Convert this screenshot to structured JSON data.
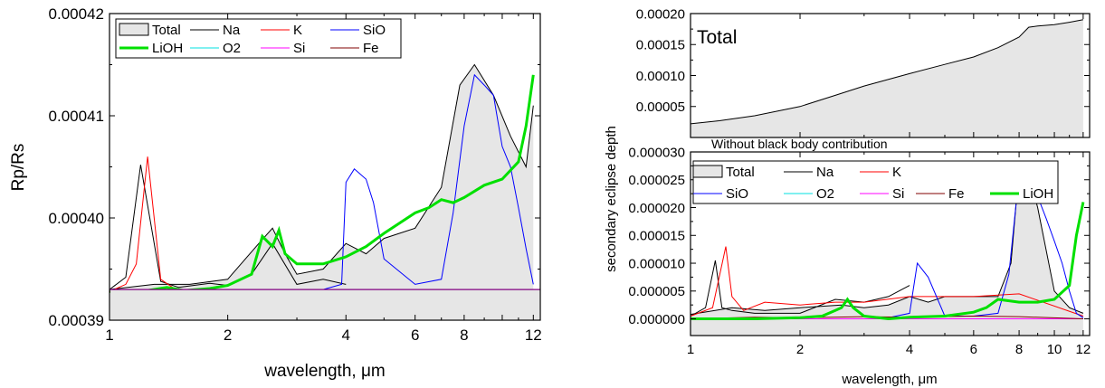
{
  "chart_data": [
    {
      "type": "line",
      "ylabel": "Rp/Rs",
      "xlabel": "wavelength, μm",
      "xscale": "log",
      "xlim": [
        1,
        12.5
      ],
      "ylim": [
        0.00039,
        0.00042
      ],
      "xticks": [
        1,
        2,
        4,
        6,
        8,
        12
      ],
      "xtick_labels": [
        "1",
        "2",
        "4",
        "6",
        "8",
        "12"
      ],
      "yticks": [
        0.00039,
        0.0004,
        0.00041,
        0.00042
      ],
      "ytick_labels": [
        "0.00039",
        "0.00040",
        "0.00041",
        "0.00042"
      ],
      "legend": {
        "position": "top-left",
        "entries": [
          "Total",
          "Na",
          "K",
          "SiO",
          "LiOH",
          "O2",
          "Si",
          "Fe"
        ]
      },
      "baseline": 0.000393,
      "series": [
        {
          "name": "Total",
          "style": "area",
          "color": "#000000",
          "x": [
            1,
            1.3,
            1.6,
            2,
            2.4,
            2.6,
            2.8,
            3,
            3.5,
            4,
            4.5,
            5,
            6,
            7,
            7.8,
            8.5,
            9.5,
            10.5,
            11.5,
            12
          ],
          "y": [
            0.000393,
            0.0003935,
            0.0003935,
            0.000394,
            0.0003975,
            0.000399,
            0.0003965,
            0.0003945,
            0.000395,
            0.0003975,
            0.0003965,
            0.000398,
            0.000399,
            0.000403,
            0.000413,
            0.000415,
            0.000412,
            0.000408,
            0.000405,
            0.000411
          ]
        },
        {
          "name": "Na",
          "color": "#000000",
          "x": [
            1,
            1.1,
            1.2,
            1.35,
            1.5,
            1.8,
            2,
            2.3,
            2.6,
            3,
            3.5,
            4
          ],
          "y": [
            0.000393,
            0.0003942,
            0.0004052,
            0.0003938,
            0.0003932,
            0.0003936,
            0.0003934,
            0.0003945,
            0.0003975,
            0.0003935,
            0.000394,
            0.0003935
          ]
        },
        {
          "name": "K",
          "color": "#ff0000",
          "x": [
            1,
            1.1,
            1.17,
            1.25,
            1.35,
            1.5,
            1.7,
            2,
            2.5,
            3,
            4,
            5,
            6,
            8,
            10,
            12
          ],
          "y": [
            0.0003928,
            0.0003935,
            0.0003955,
            0.000406,
            0.000394,
            0.0003928,
            0.0003928,
            0.000393,
            0.0003928,
            0.0003928,
            0.0003928,
            0.0003928,
            0.0003928,
            0.0003928,
            0.0003928,
            0.0003928
          ]
        },
        {
          "name": "SiO",
          "color": "#0000ff",
          "x": [
            3.5,
            3.9,
            4.0,
            4.2,
            4.5,
            4.7,
            5.0,
            6.0,
            7.0,
            7.5,
            8.0,
            8.5,
            9.0,
            9.5,
            10.0,
            10.5,
            11.0,
            11.5,
            12.0
          ],
          "y": [
            0.000393,
            0.0003935,
            0.0004035,
            0.0004048,
            0.0004038,
            0.0004015,
            0.000396,
            0.0003935,
            0.000394,
            0.0004005,
            0.000409,
            0.000414,
            0.000413,
            0.000412,
            0.000407,
            0.000405,
            0.000401,
            0.000397,
            0.0003935
          ]
        },
        {
          "name": "LiOH",
          "color": "#00e000",
          "x": [
            1,
            1.2,
            1.4,
            1.55,
            1.8,
            2.0,
            2.3,
            2.45,
            2.6,
            2.7,
            2.8,
            3.0,
            3.5,
            4.0,
            4.5,
            5.0,
            6.0,
            6.5,
            7.0,
            7.5,
            8.0,
            9.0,
            10.0,
            11.0,
            11.5,
            12.0
          ],
          "y": [
            0.0003928,
            0.0003928,
            0.0003932,
            0.0003929,
            0.0003931,
            0.0003934,
            0.0003945,
            0.0003982,
            0.0003972,
            0.0003988,
            0.0003965,
            0.0003955,
            0.0003955,
            0.0003962,
            0.0003972,
            0.0003985,
            0.0004005,
            0.000401,
            0.0004018,
            0.0004015,
            0.000402,
            0.0004032,
            0.0004038,
            0.0004055,
            0.000409,
            0.000414
          ]
        },
        {
          "name": "O2",
          "color": "#00e0e0",
          "x": [
            1,
            12
          ],
          "y": [
            0.0003928,
            0.0003928
          ]
        },
        {
          "name": "Si",
          "color": "#ff00ff",
          "x": [
            1,
            12
          ],
          "y": [
            0.0003928,
            0.0003928
          ]
        },
        {
          "name": "Fe",
          "color": "#800000",
          "x": [
            1,
            1.3,
            1.6,
            2,
            3,
            4,
            6,
            8,
            10,
            12
          ],
          "y": [
            0.0003928,
            0.0003929,
            0.0003928,
            0.0003929,
            0.0003928,
            0.000393,
            0.0003929,
            0.000393,
            0.0003929,
            0.0003928
          ]
        }
      ]
    },
    {
      "type": "area",
      "title": "Total",
      "xscale": "log",
      "xlim": [
        1,
        12.5
      ],
      "ylim": [
        0.0,
        0.0002
      ],
      "yticks": [
        5e-05,
        0.0001,
        0.00015,
        0.0002
      ],
      "ytick_labels": [
        "0.00005",
        "0.00010",
        "0.00015",
        "0.00020"
      ],
      "series": [
        {
          "name": "Total",
          "color": "#000000",
          "x": [
            1,
            1.2,
            1.5,
            2,
            2.5,
            3,
            4,
            5,
            6,
            7,
            8,
            8.5,
            9,
            10,
            11,
            12
          ],
          "y": [
            2.2e-05,
            2.7e-05,
            3.5e-05,
            5e-05,
            6.8e-05,
            8.3e-05,
            0.000103,
            0.000118,
            0.00013,
            0.000145,
            0.000162,
            0.000178,
            0.00018,
            0.000182,
            0.000186,
            0.00019
          ]
        }
      ]
    },
    {
      "type": "line",
      "annotation": "Without black body contribution",
      "ylabel": "secondary eclipse depth",
      "xlabel": "wavelength, μm",
      "xscale": "log",
      "xlim": [
        1,
        12.5
      ],
      "ylim": [
        -3e-06,
        3e-05
      ],
      "xticks": [
        1,
        2,
        4,
        6,
        8,
        10,
        12
      ],
      "xtick_labels": [
        "1",
        "2",
        "4",
        "6",
        "8",
        "10",
        "12"
      ],
      "yticks": [
        0.0,
        5e-06,
        1e-05,
        1.5e-05,
        2e-05,
        2.5e-05,
        3e-05
      ],
      "ytick_labels": [
        "0.000000",
        "0.000005",
        "0.000010",
        "0.000015",
        "0.000020",
        "0.000025",
        "0.000030"
      ],
      "legend": {
        "position": "upper-middle",
        "entries": [
          "Total",
          "Na",
          "K",
          "SiO",
          "O2",
          "Si",
          "Fe",
          "LiOH"
        ]
      },
      "series": [
        {
          "name": "Total",
          "style": "area",
          "color": "#000000",
          "x": [
            1,
            1.3,
            1.6,
            2,
            2.6,
            3,
            3.5,
            4,
            4.5,
            5,
            6,
            7,
            7.6,
            8,
            8.5,
            9,
            10,
            11,
            12
          ],
          "y": [
            8e-07,
            2e-06,
            1.5e-06,
            2e-06,
            2.5e-06,
            2e-06,
            2.5e-06,
            4e-06,
            3e-06,
            4e-06,
            4e-06,
            4e-06,
            1e-05,
            2.7e-05,
            2.6e-05,
            2e-05,
            5e-06,
            2e-06,
            1e-06
          ]
        },
        {
          "name": "Na",
          "color": "#000000",
          "x": [
            1,
            1.1,
            1.17,
            1.22,
            1.3,
            1.5,
            2,
            2.5,
            3,
            3.5,
            4
          ],
          "y": [
            5e-07,
            2e-06,
            1.05e-05,
            2e-06,
            1.5e-06,
            1e-06,
            1e-06,
            3.5e-06,
            3e-06,
            4e-06,
            6e-06
          ]
        },
        {
          "name": "K",
          "color": "#ff0000",
          "x": [
            1,
            1.15,
            1.25,
            1.3,
            1.4,
            1.6,
            2,
            2.5,
            3,
            4,
            6,
            8,
            12
          ],
          "y": [
            5e-07,
            2e-06,
            1.3e-05,
            4e-06,
            1.5e-06,
            3e-06,
            2.5e-06,
            3e-06,
            3e-06,
            4e-06,
            4e-06,
            4.5e-06,
            5e-07
          ]
        },
        {
          "name": "SiO",
          "color": "#0000ff",
          "x": [
            3.5,
            4.0,
            4.2,
            4.5,
            5.0,
            6.0,
            7.0,
            7.5,
            8.0,
            8.5,
            9.0,
            9.5,
            10.0,
            10.5,
            11.0,
            11.5,
            12.0
          ],
          "y": [
            2e-07,
            1e-06,
            1e-05,
            7.5e-06,
            5e-07,
            5e-07,
            1e-06,
            8e-06,
            2.6e-05,
            2.5e-05,
            2.2e-05,
            1.8e-05,
            1.4e-05,
            1e-05,
            5e-06,
            1e-06,
            2e-07
          ]
        },
        {
          "name": "O2",
          "color": "#00e0e0",
          "x": [
            1,
            12
          ],
          "y": [
            0.0,
            0.0
          ]
        },
        {
          "name": "Si",
          "color": "#ff00ff",
          "x": [
            1,
            12
          ],
          "y": [
            0.0,
            0.0
          ]
        },
        {
          "name": "Fe",
          "color": "#800000",
          "x": [
            1,
            1.5,
            2,
            3,
            4,
            6,
            8,
            12
          ],
          "y": [
            0.0,
            3e-07,
            2e-07,
            4e-07,
            3e-07,
            5e-07,
            4e-07,
            0.0
          ]
        },
        {
          "name": "LiOH",
          "color": "#00e000",
          "x": [
            1,
            1.5,
            2.0,
            2.3,
            2.5,
            2.6,
            2.7,
            2.8,
            3.0,
            3.5,
            4.0,
            5.0,
            6.0,
            6.5,
            7.0,
            8.0,
            9.0,
            10.0,
            11.0,
            11.5,
            12.0
          ],
          "y": [
            0.0,
            0.0,
            2e-07,
            5e-07,
            1.5e-06,
            2e-06,
            3.5e-06,
            2e-06,
            5e-07,
            0.0,
            3e-07,
            5e-07,
            1.2e-06,
            2e-06,
            3.5e-06,
            3e-06,
            3e-06,
            3.5e-06,
            6e-06,
            1.5e-05,
            2.1e-05
          ]
        }
      ]
    }
  ]
}
